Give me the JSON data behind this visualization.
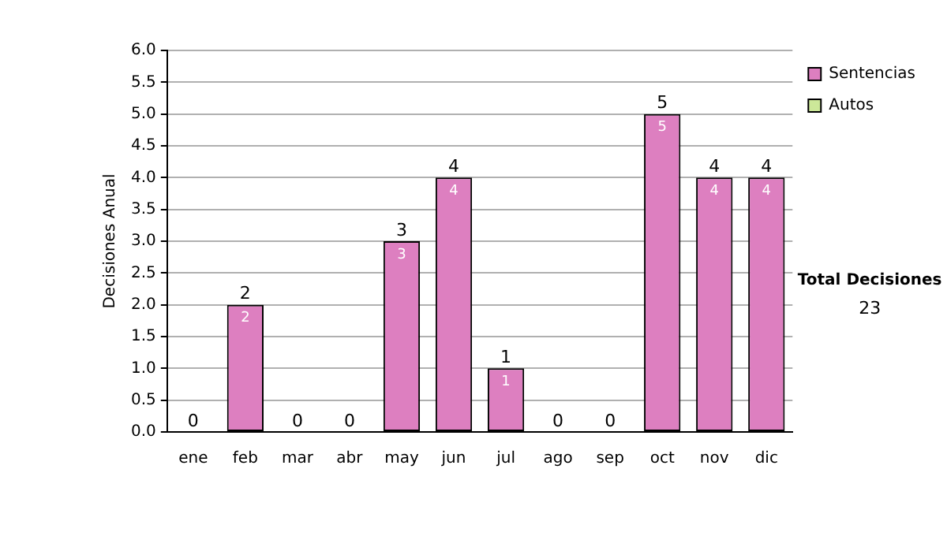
{
  "chart_data": {
    "type": "bar",
    "stacked": true,
    "ylabel": "Decisiones Anual",
    "categories": [
      "ene",
      "feb",
      "mar",
      "abr",
      "may",
      "jun",
      "jul",
      "ago",
      "sep",
      "oct",
      "nov",
      "dic"
    ],
    "series": [
      {
        "name": "Sentencias",
        "color": "#dd7fc0",
        "values": [
          0,
          2,
          0,
          0,
          3,
          4,
          1,
          0,
          0,
          5,
          4,
          4
        ],
        "value_labels": [
          null,
          "2",
          null,
          null,
          "3",
          "4",
          "1",
          null,
          null,
          "5",
          "4",
          "4"
        ]
      },
      {
        "name": "Autos",
        "color": "#cce899",
        "values": [
          0,
          0,
          0,
          0,
          0,
          0,
          0,
          0,
          0,
          0,
          0,
          0
        ]
      }
    ],
    "totals": [
      "0",
      "2",
      "0",
      "0",
      "3",
      "4",
      "1",
      "0",
      "0",
      "5",
      "4",
      "4"
    ],
    "ylim": [
      0,
      6
    ],
    "yticks": [
      {
        "value": 0,
        "label": "0.0"
      },
      {
        "value": 0.5,
        "label": "0.5"
      },
      {
        "value": 1,
        "label": "1.0"
      },
      {
        "value": 1.5,
        "label": "1.5"
      },
      {
        "value": 2,
        "label": "2.0"
      },
      {
        "value": 2.5,
        "label": "2.5"
      },
      {
        "value": 3,
        "label": "3.0"
      },
      {
        "value": 3.5,
        "label": "3.5"
      },
      {
        "value": 4,
        "label": "4.0"
      },
      {
        "value": 4.5,
        "label": "4.5"
      },
      {
        "value": 5,
        "label": "5.0"
      },
      {
        "value": 5.5,
        "label": "5.5"
      },
      {
        "value": 6,
        "label": "6.0"
      }
    ],
    "grid": "y",
    "legend": "right",
    "annotations": [
      "Total Decisiones",
      "23"
    ]
  }
}
